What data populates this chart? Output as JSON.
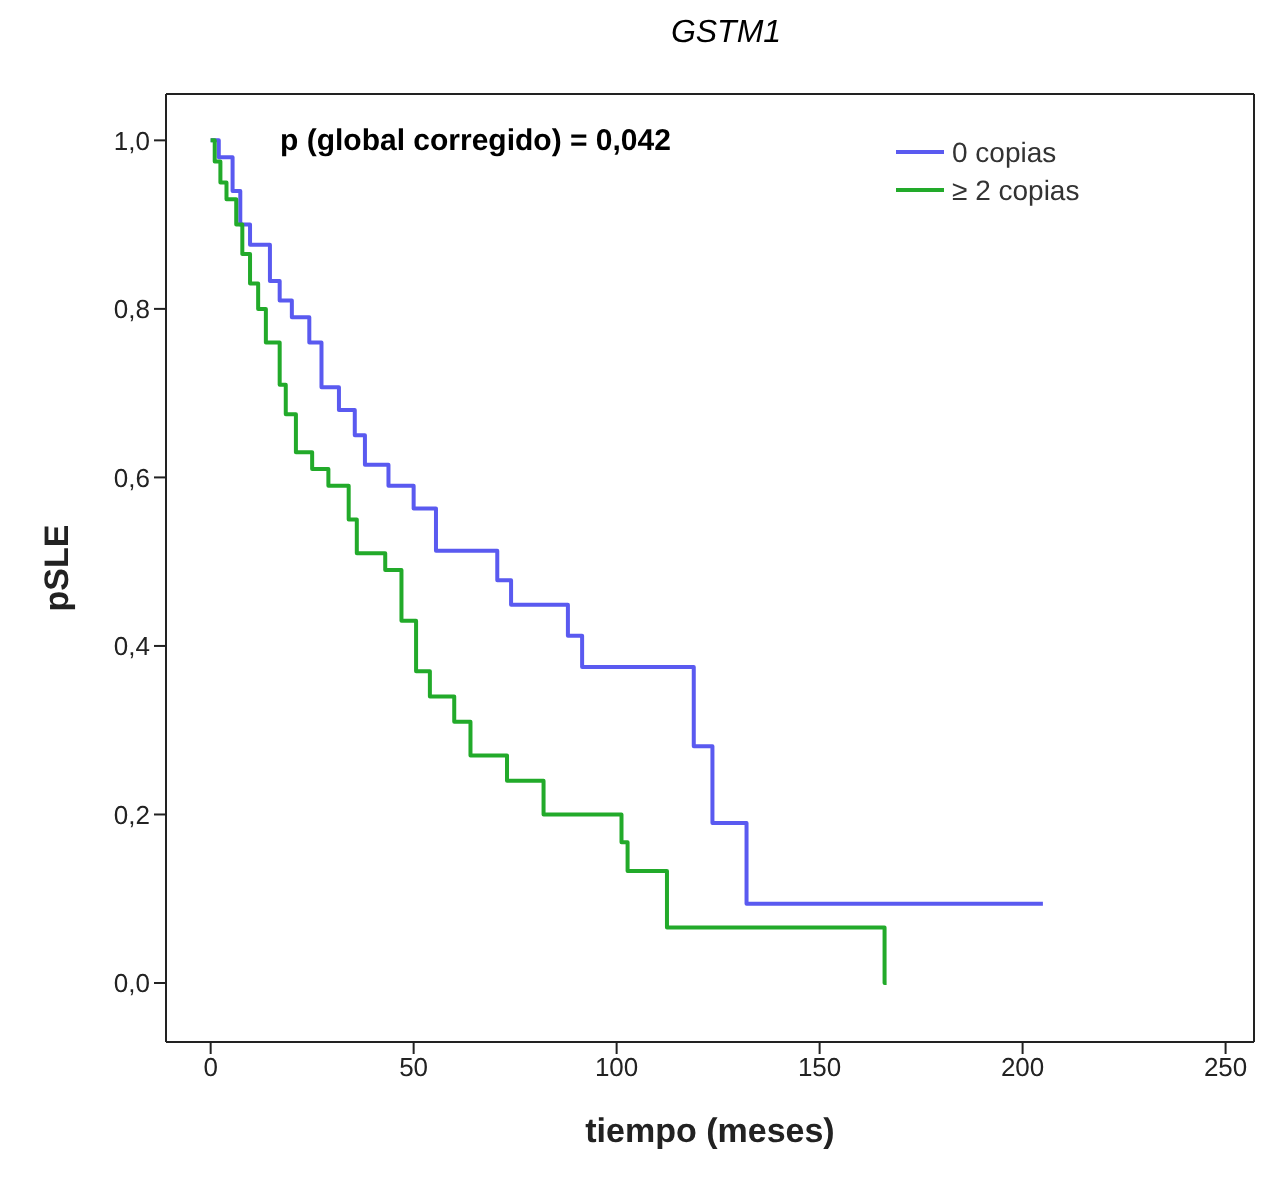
{
  "chart_data": {
    "type": "step",
    "title": "GSTM1",
    "xlabel": "tiempo (meses)",
    "ylabel": "pSLE",
    "annotations": [
      "p (global corregido) = 0,042"
    ],
    "xlim": [
      -11,
      257
    ],
    "xticks": [
      0,
      50,
      100,
      150,
      200,
      250
    ],
    "ylim": [
      -0.07,
      1.055
    ],
    "yticks": [
      {
        "value": 0,
        "label": "0,0"
      },
      {
        "value": 0.2,
        "label": "0,2"
      },
      {
        "value": 0.4,
        "label": "0,4"
      },
      {
        "value": 0.6,
        "label": "0,6"
      },
      {
        "value": 0.8,
        "label": "0,8"
      },
      {
        "value": 1,
        "label": "1,0"
      }
    ],
    "legend": "top right",
    "marker": "none",
    "line_style": "solid",
    "series": [
      {
        "name": "0 copias",
        "color": "#5a5af0",
        "x": [
          0,
          2,
          5.4,
          7.3,
          9.7,
          14.6,
          17,
          20,
          24.3,
          27.3,
          31.6,
          35.5,
          38,
          43.8,
          50,
          55.5,
          70.6,
          74,
          88,
          91.5,
          119,
          123.6,
          132,
          205
        ],
        "values": [
          1,
          0.98,
          0.94,
          0.9,
          0.876,
          0.833,
          0.81,
          0.79,
          0.76,
          0.707,
          0.68,
          0.65,
          0.615,
          0.59,
          0.563,
          0.513,
          0.478,
          0.449,
          0.412,
          0.375,
          0.281,
          0.19,
          0.094,
          0.094
        ]
      },
      {
        "name": "≥ 2 copias",
        "color": "#22aa2a",
        "x": [
          0,
          1,
          2.4,
          3.9,
          6.3,
          7.8,
          9.7,
          11.7,
          13.6,
          17,
          18.5,
          21,
          25,
          29,
          34,
          36,
          43,
          47,
          50.6,
          54,
          60,
          64,
          73,
          82,
          101.2,
          102.7,
          112.4,
          166,
          166.5
        ],
        "values": [
          1,
          0.975,
          0.95,
          0.93,
          0.9,
          0.865,
          0.83,
          0.8,
          0.76,
          0.71,
          0.675,
          0.63,
          0.61,
          0.59,
          0.55,
          0.51,
          0.49,
          0.43,
          0.37,
          0.34,
          0.31,
          0.27,
          0.24,
          0.2,
          0.167,
          0.133,
          0.066,
          0,
          0
        ]
      }
    ]
  }
}
